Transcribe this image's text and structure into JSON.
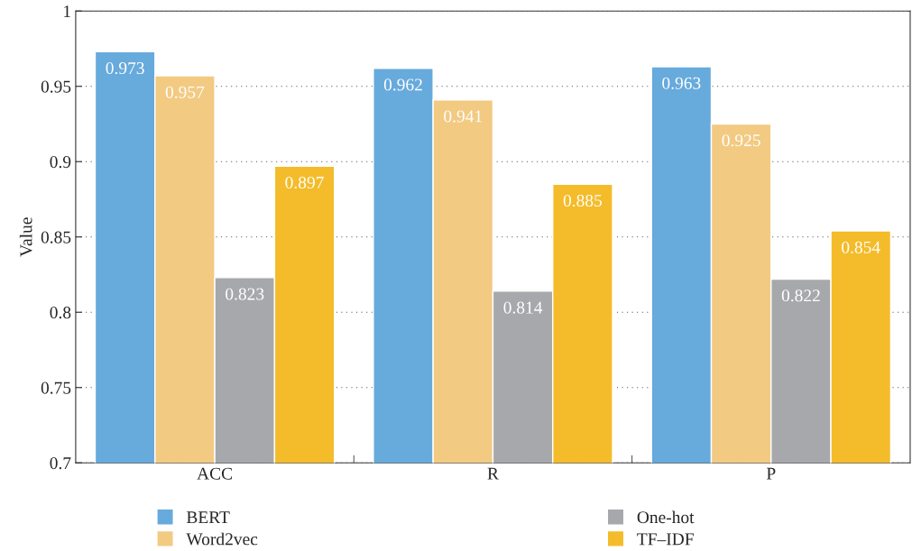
{
  "chart_data": {
    "type": "bar",
    "ylabel": "Value",
    "categories": [
      "ACC",
      "R",
      "P"
    ],
    "series": [
      {
        "name": "BERT",
        "color": "#67aadc",
        "values": [
          0.973,
          0.962,
          0.963
        ]
      },
      {
        "name": "Word2vec",
        "color": "#f2ca82",
        "values": [
          0.957,
          0.941,
          0.925
        ]
      },
      {
        "name": "One-hot",
        "color": "#a7a8ab",
        "values": [
          0.823,
          0.814,
          0.822
        ]
      },
      {
        "name": "TF–IDF",
        "color": "#f4bc2a",
        "values": [
          0.897,
          0.885,
          0.854
        ]
      }
    ],
    "ylim": [
      0.7,
      1
    ],
    "yticks": [
      0.7,
      0.75,
      0.8,
      0.85,
      0.9,
      0.95,
      1
    ],
    "grid": "y",
    "legend": "bottom",
    "data_labels": true
  }
}
